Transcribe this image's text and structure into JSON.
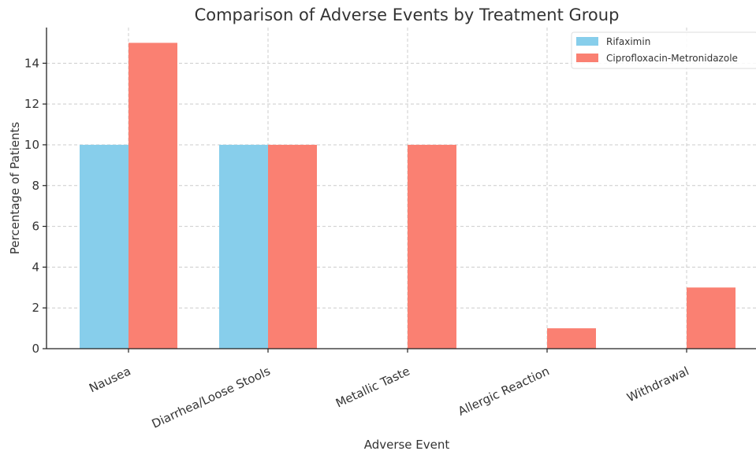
{
  "chart_data": {
    "type": "bar",
    "title": "Comparison of Adverse Events by Treatment Group",
    "xlabel": "Adverse Event",
    "ylabel": "Percentage of Patients",
    "categories": [
      "Nausea",
      "Diarrhea/Loose Stools",
      "Metallic Taste",
      "Allergic Reaction",
      "Withdrawal"
    ],
    "series": [
      {
        "name": "Rifaximin",
        "color": "#87ceeb",
        "values": [
          10,
          10,
          0,
          0,
          0
        ]
      },
      {
        "name": "Ciprofloxacin-Metronidazole",
        "color": "#fa8072",
        "values": [
          15,
          10,
          10,
          1,
          3
        ]
      }
    ],
    "ylim": [
      0,
      15.75
    ],
    "yticks": [
      0,
      2,
      4,
      6,
      8,
      10,
      12,
      14
    ],
    "grid": true,
    "legend_position": "top-right"
  }
}
